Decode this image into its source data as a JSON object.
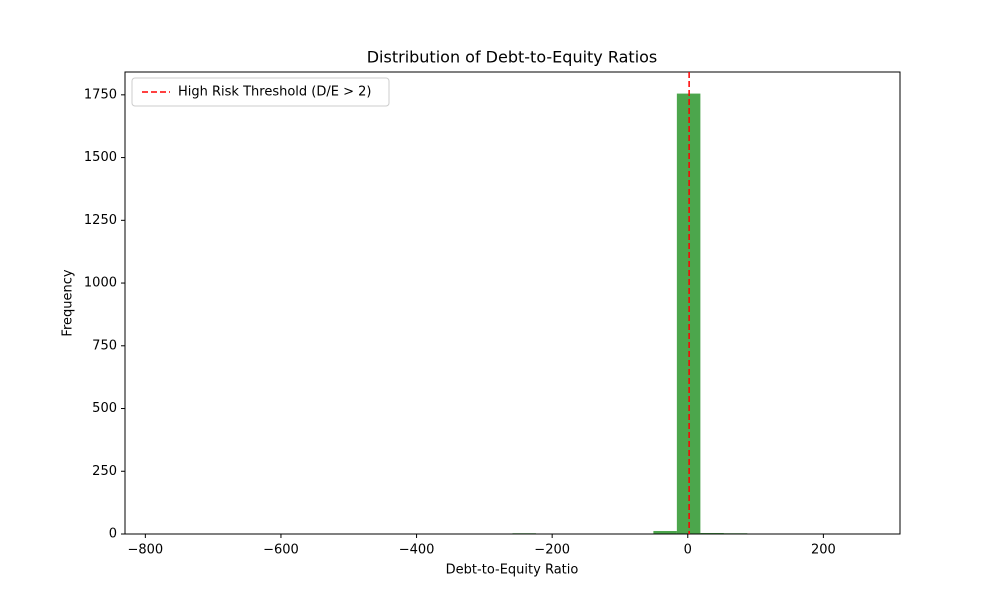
{
  "chart_data": {
    "type": "histogram",
    "title": "Distribution of Debt-to-Equity Ratios",
    "x_label": "Debt-to-Equity Ratio",
    "y_label": "Frequency",
    "bins": [
      -778.0,
      -743.4,
      -708.7,
      -674.1,
      -639.5,
      -604.8,
      -570.2,
      -535.6,
      -500.9,
      -466.3,
      -431.7,
      -397.0,
      -362.4,
      -327.8,
      -293.1,
      -258.5,
      -223.9,
      -189.2,
      -154.6,
      -120.0,
      -85.3,
      -50.7,
      -16.1,
      18.6,
      53.2,
      87.8,
      122.5,
      157.1,
      191.7,
      226.4,
      261.0
    ],
    "counts": [
      1,
      0,
      0,
      0,
      0,
      0,
      0,
      0,
      0,
      0,
      0,
      0,
      0,
      0,
      0,
      3,
      0,
      0,
      0,
      0,
      2,
      12,
      1755,
      4,
      3,
      0,
      0,
      0,
      0,
      1
    ],
    "color": "green",
    "alpha": 0.7,
    "threshold": {
      "value": 2,
      "label": "High Risk Threshold (D/E > 2)",
      "color": "red"
    },
    "legend": "upper left",
    "xlim": [
      -830,
      313
    ],
    "xticks": [
      {
        "value": -800,
        "label": "−800"
      },
      {
        "value": -600,
        "label": "−600"
      },
      {
        "value": -400,
        "label": "−400"
      },
      {
        "value": -200,
        "label": "−200"
      },
      0,
      200
    ],
    "ylim": [
      0,
      1841
    ],
    "yticks": [
      0,
      250,
      500,
      750,
      1000,
      1250,
      1500,
      1750
    ]
  }
}
